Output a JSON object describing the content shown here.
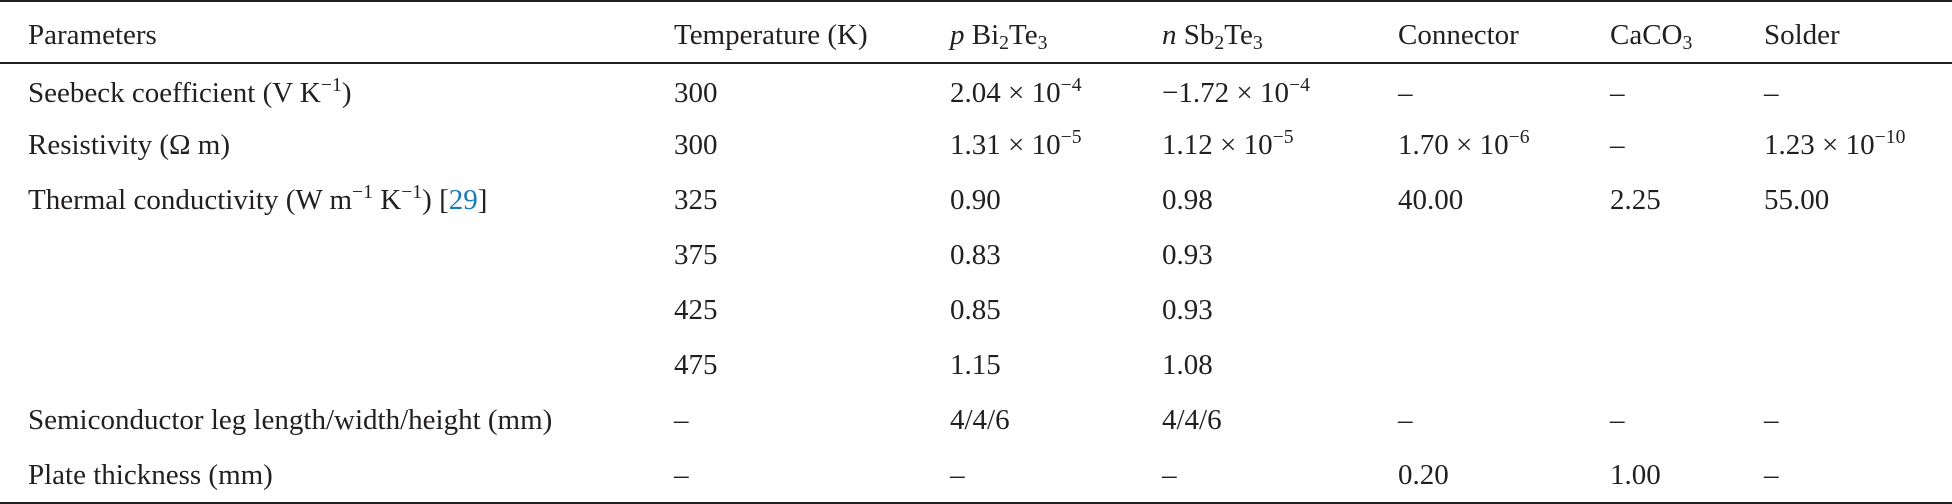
{
  "headers": {
    "parameters": "Parameters",
    "temperature": "Temperature (K)",
    "p_type": {
      "prefix": "p",
      "name": "Bi2Te3",
      "chars": [
        "Bi",
        "2",
        "Te",
        "3"
      ]
    },
    "n_type": {
      "prefix": "n",
      "name": "Sb2Te3",
      "chars": [
        "Sb",
        "2",
        "Te",
        "3"
      ]
    },
    "connector": "Connector",
    "caco3": {
      "name": "CaCO3",
      "base": "CaCO",
      "sub": "3"
    },
    "solder": "Solder"
  },
  "rows": {
    "seebeck": {
      "param": "Seebeck coefficient (V K",
      "param_exp": "−1",
      "param_close": ")",
      "temperature": "300",
      "p": {
        "mant": "2.04 × 10",
        "exp": "−4"
      },
      "n": {
        "mant": "−1.72 × 10",
        "exp": "−4"
      },
      "connector": "–",
      "caco3": "–",
      "solder": "–"
    },
    "resistivity": {
      "param": "Resistivity (Ω m)",
      "temperature": "300",
      "p": {
        "mant": "1.31 × 10",
        "exp": "−5"
      },
      "n": {
        "mant": "1.12 × 10",
        "exp": "−5"
      },
      "connector": {
        "mant": "1.70 × 10",
        "exp": "−6"
      },
      "caco3": "–",
      "solder": {
        "mant": "1.23 × 10",
        "exp": "−10"
      }
    },
    "thermal": {
      "param_a": "Thermal conductivity (W m",
      "param_exp1": "−1",
      "param_b": " K",
      "param_exp2": "−1",
      "param_c": ") [",
      "ref": "29",
      "param_d": "]",
      "temperature": "325",
      "p": "0.90",
      "n": "0.98",
      "connector": "40.00",
      "caco3": "2.25",
      "solder": "55.00"
    },
    "t375": {
      "temperature": "375",
      "p": "0.83",
      "n": "0.93"
    },
    "t425": {
      "temperature": "425",
      "p": "0.85",
      "n": "0.93"
    },
    "t475": {
      "temperature": "475",
      "p": "1.15",
      "n": "1.08"
    },
    "leg": {
      "param": "Semiconductor leg length/width/height (mm)",
      "temperature": "–",
      "p": "4/4/6",
      "n": "4/4/6",
      "connector": "–",
      "caco3": "–",
      "solder": "–"
    },
    "plate": {
      "param": "Plate thickness (mm)",
      "temperature": "–",
      "p": "–",
      "n": "–",
      "connector": "0.20",
      "caco3": "1.00",
      "solder": "–"
    }
  }
}
